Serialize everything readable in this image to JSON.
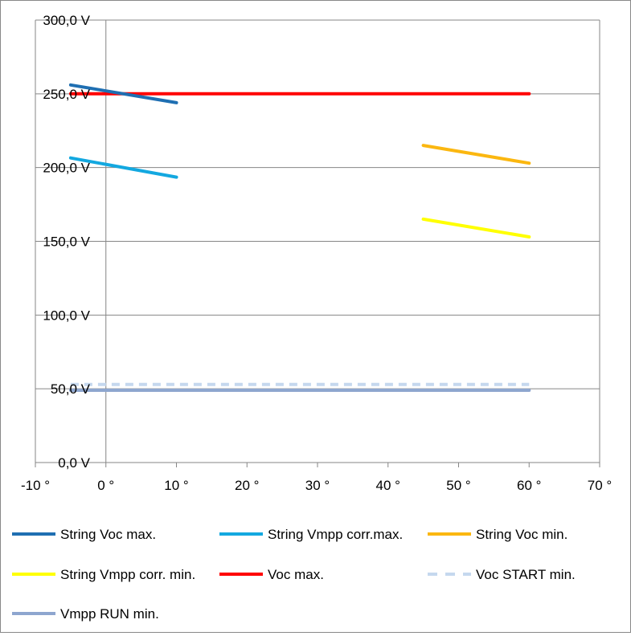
{
  "chart_data": {
    "type": "line",
    "title": "",
    "xlabel": "",
    "ylabel": "",
    "xlim": [
      -10,
      70
    ],
    "ylim": [
      0,
      300
    ],
    "x_ticks": [
      -10,
      0,
      10,
      20,
      30,
      40,
      50,
      60,
      70
    ],
    "y_ticks": [
      0,
      50,
      100,
      150,
      200,
      250,
      300
    ],
    "x_tick_labels": [
      "-10 °",
      "0 °",
      "10 °",
      "20 °",
      "30 °",
      "40 °",
      "50 °",
      "60 °",
      "70 °"
    ],
    "y_tick_labels": [
      "0,0 V",
      "50,0 V",
      "100,0 V",
      "150,0 V",
      "200,0 V",
      "250,0 V",
      "300,0 V"
    ],
    "grid": "horizontal",
    "legend_position": "bottom",
    "series": [
      {
        "name": "String Voc max.",
        "color": "#1f6fb2",
        "dash": false,
        "x": [
          -5,
          10
        ],
        "y": [
          256,
          244
        ]
      },
      {
        "name": "String Vmpp corr.max.",
        "color": "#13a8e0",
        "dash": false,
        "x": [
          -5,
          10
        ],
        "y": [
          206.5,
          193.5
        ]
      },
      {
        "name": "String Voc min.",
        "color": "#fbb710",
        "dash": false,
        "x": [
          45,
          60
        ],
        "y": [
          215,
          203
        ]
      },
      {
        "name": "String Vmpp corr. min.",
        "color": "#ffff00",
        "dash": false,
        "x": [
          45,
          60
        ],
        "y": [
          165,
          153
        ]
      },
      {
        "name": "Voc max.",
        "color": "#ff0000",
        "dash": false,
        "x": [
          -5,
          60
        ],
        "y": [
          250,
          250
        ]
      },
      {
        "name": "Voc START min.",
        "color": "#c5d8ee",
        "dash": true,
        "x": [
          -5,
          60
        ],
        "y": [
          53,
          53
        ]
      },
      {
        "name": "Vmpp RUN min.",
        "color": "#8ea6cf",
        "dash": false,
        "x": [
          -5,
          60
        ],
        "y": [
          49,
          49
        ]
      }
    ]
  }
}
